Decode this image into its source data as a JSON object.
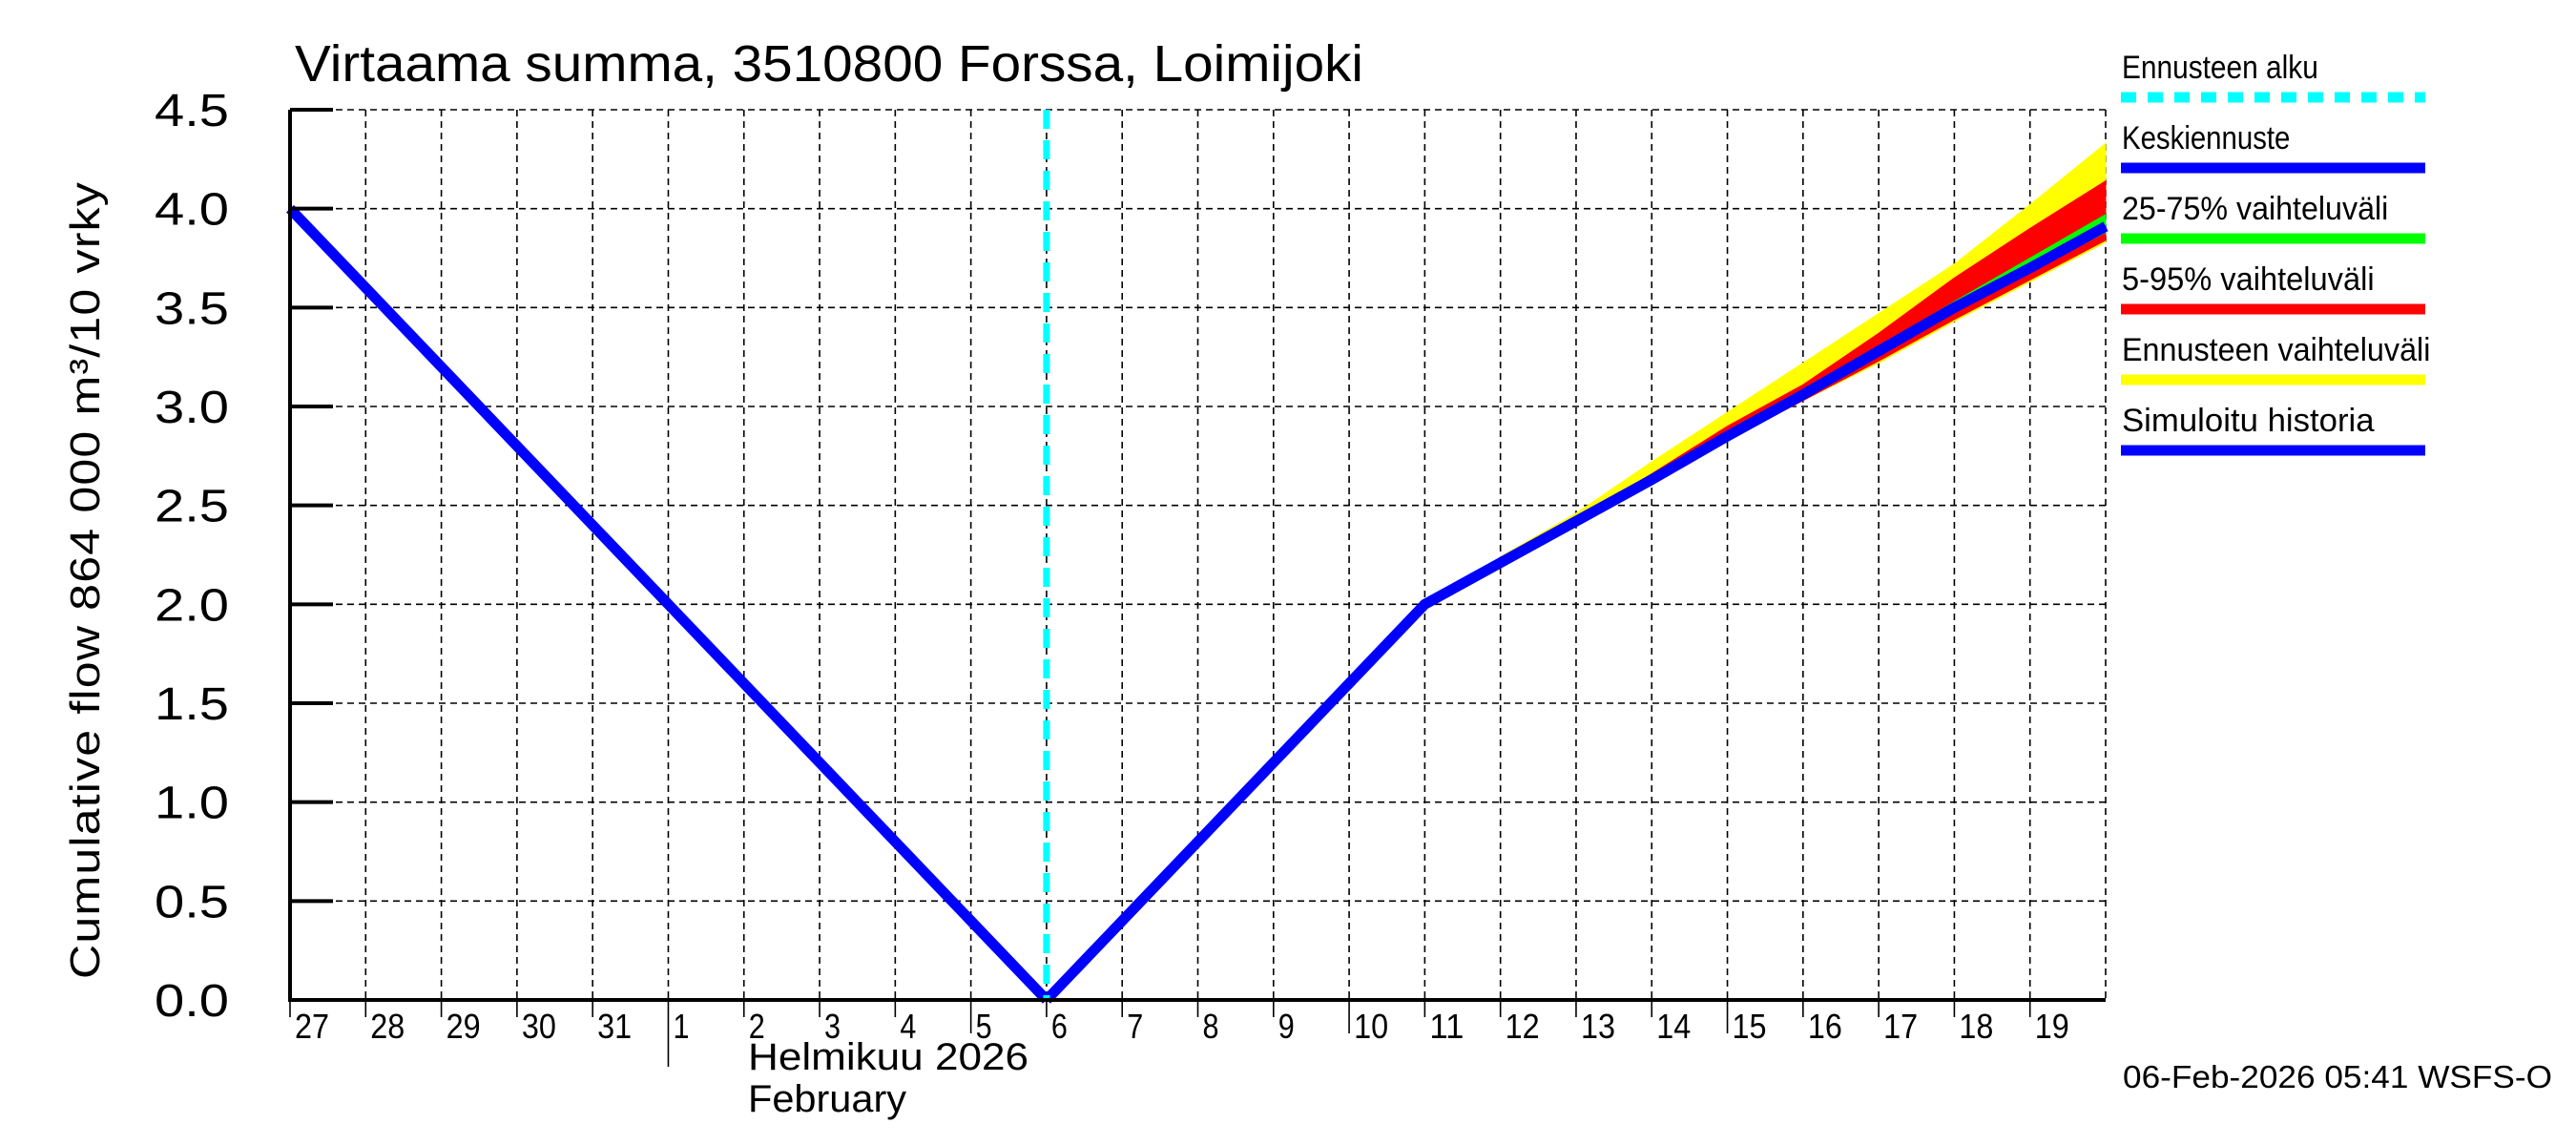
{
  "chart_data": {
    "type": "area",
    "title": "Virtaama summa, 3510800 Forssa, Loimijoki",
    "ylabel": "Cumulative flow    864 000 m³/10 vrky",
    "xlabel": "Helmikuu  2026 / February",
    "ylim": [
      0.0,
      4.5
    ],
    "yticks": [
      "0.0",
      "0.5",
      "1.0",
      "1.5",
      "2.0",
      "2.5",
      "3.0",
      "3.5",
      "4.0",
      "4.5"
    ],
    "xrange_days": [
      "2026-01-27",
      "2026-02-20"
    ],
    "xtick_labels": [
      "27",
      "28",
      "29",
      "30",
      "31",
      "1",
      "2",
      "3",
      "4",
      "5",
      "6",
      "7",
      "8",
      "9",
      "10",
      "11",
      "12",
      "13",
      "14",
      "15",
      "16",
      "17",
      "18",
      "19"
    ],
    "month_label_fi": "Helmikuu  2026",
    "month_label_en": "February",
    "grid": true,
    "legend_position": "right",
    "forecast_start": "2026-02-06",
    "x": [
      "2026-01-27",
      "2026-02-01",
      "2026-02-06",
      "2026-02-11",
      "2026-02-13",
      "2026-02-14",
      "2026-02-15",
      "2026-02-16",
      "2026-02-17",
      "2026-02-18",
      "2026-02-19",
      "2026-02-20"
    ],
    "series": [
      {
        "name": "Simuloitu historia",
        "color": "#0000ff",
        "points": [
          [
            0,
            4.0
          ],
          [
            5,
            2.0
          ],
          [
            10,
            0.0
          ]
        ]
      },
      {
        "name": "Keskiennuste",
        "color": "#0000ff",
        "points": [
          [
            10,
            0.0
          ],
          [
            15,
            2.0
          ],
          [
            17,
            2.42
          ],
          [
            18,
            2.63
          ],
          [
            19,
            2.85
          ],
          [
            20,
            3.06
          ],
          [
            21,
            3.28
          ],
          [
            22,
            3.5
          ],
          [
            23,
            3.7
          ],
          [
            24,
            3.91
          ]
        ]
      },
      {
        "name": "25-75% vaihteluväli",
        "color": "#00ff00",
        "upper": [
          [
            17,
            2.42
          ],
          [
            19,
            2.86
          ],
          [
            20,
            3.08
          ],
          [
            21,
            3.3
          ],
          [
            22,
            3.53
          ],
          [
            23,
            3.75
          ],
          [
            24,
            3.97
          ]
        ],
        "lower": [
          [
            17,
            2.42
          ],
          [
            19,
            2.84
          ],
          [
            20,
            3.05
          ],
          [
            21,
            3.26
          ],
          [
            22,
            3.48
          ],
          [
            23,
            3.68
          ],
          [
            24,
            3.88
          ]
        ]
      },
      {
        "name": "5-95% vaihteluväli",
        "color": "#ff0000",
        "upper": [
          [
            17,
            2.43
          ],
          [
            18,
            2.66
          ],
          [
            19,
            2.9
          ],
          [
            20,
            3.11
          ],
          [
            21,
            3.37
          ],
          [
            22,
            3.65
          ],
          [
            23,
            3.9
          ],
          [
            24,
            4.14
          ]
        ],
        "lower": [
          [
            17,
            2.41
          ],
          [
            18,
            2.62
          ],
          [
            19,
            2.83
          ],
          [
            20,
            3.03
          ],
          [
            21,
            3.23
          ],
          [
            22,
            3.44
          ],
          [
            23,
            3.64
          ],
          [
            24,
            3.84
          ]
        ]
      },
      {
        "name": "Ennusteen vaihteluväli",
        "color": "#ffff00",
        "upper": [
          [
            16,
            2.24
          ],
          [
            17,
            2.46
          ],
          [
            18,
            2.72
          ],
          [
            19,
            2.97
          ],
          [
            20,
            3.22
          ],
          [
            21,
            3.47
          ],
          [
            22,
            3.72
          ],
          [
            23,
            4.02
          ],
          [
            24,
            4.33
          ]
        ],
        "lower": [
          [
            16,
            2.22
          ],
          [
            17,
            2.41
          ],
          [
            18,
            2.62
          ],
          [
            19,
            2.83
          ],
          [
            20,
            3.03
          ],
          [
            21,
            3.22
          ],
          [
            22,
            3.43
          ],
          [
            23,
            3.63
          ],
          [
            24,
            3.83
          ]
        ]
      }
    ]
  },
  "legend": {
    "items": [
      {
        "label": "Ennusteen alku",
        "color": "#00ffff",
        "style": "dashed"
      },
      {
        "label": "Keskiennuste",
        "color": "#0000ff",
        "style": "solid"
      },
      {
        "label": "25-75% vaihteluväli",
        "color": "#00ff00",
        "style": "solid"
      },
      {
        "label": "5-95% vaihteluväli",
        "color": "#ff0000",
        "style": "solid"
      },
      {
        "label": "Ennusteen vaihteluväli",
        "color": "#ffff00",
        "style": "solid"
      },
      {
        "label": "Simuloitu historia",
        "color": "#0000ff",
        "style": "solid"
      }
    ]
  },
  "footer": {
    "timestamp": "06-Feb-2026 05:41 WSFS-O"
  }
}
